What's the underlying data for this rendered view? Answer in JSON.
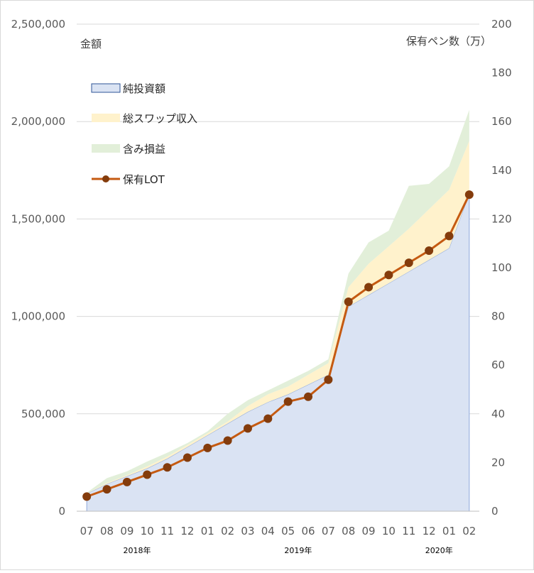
{
  "chart_data": {
    "type": "area",
    "left_axis_unit": "金額",
    "right_axis_unit": "保有ペン数（万）",
    "y_left": {
      "min": 0,
      "max": 2500000,
      "ticks": [
        "0",
        "500,000",
        "1,000,000",
        "1,500,000",
        "2,000,000",
        "2,500,000"
      ]
    },
    "y_right": {
      "min": 0,
      "max": 200,
      "ticks": [
        "0",
        "20",
        "40",
        "60",
        "80",
        "100",
        "120",
        "140",
        "160",
        "180",
        "200"
      ]
    },
    "categories": [
      "07",
      "08",
      "09",
      "10",
      "11",
      "12",
      "01",
      "02",
      "03",
      "04",
      "05",
      "06",
      "07",
      "08",
      "09",
      "10",
      "11",
      "12",
      "01",
      "02"
    ],
    "year_labels": [
      {
        "label": "2018年",
        "at_index": 2.5
      },
      {
        "label": "2019年",
        "at_index": 10.5
      },
      {
        "label": "2020年",
        "at_index": 17.5
      }
    ],
    "legend": [
      "純投資額",
      "総スワップ収入",
      "含み損益",
      "保有LOT"
    ],
    "series": [
      {
        "name": "純投資額",
        "kind": "area",
        "axis": "left",
        "color": "#dae3f3",
        "edge": "#8faadc",
        "values": [
          90000,
          140000,
          180000,
          220000,
          270000,
          330000,
          390000,
          450000,
          510000,
          560000,
          600000,
          650000,
          700000,
          1050000,
          1110000,
          1170000,
          1230000,
          1290000,
          1350000,
          1630000
        ]
      },
      {
        "name": "総スワップ収入",
        "kind": "band",
        "axis": "left",
        "color": "#fff2cc",
        "lower": [
          90000,
          140000,
          180000,
          220000,
          270000,
          330000,
          390000,
          450000,
          510000,
          560000,
          600000,
          650000,
          700000,
          1050000,
          1110000,
          1170000,
          1230000,
          1290000,
          1350000,
          1630000
        ],
        "upper": [
          92000,
          145000,
          185000,
          230000,
          280000,
          340000,
          400000,
          460000,
          540000,
          600000,
          640000,
          700000,
          760000,
          1150000,
          1270000,
          1360000,
          1450000,
          1550000,
          1650000,
          1900000
        ]
      },
      {
        "name": "含み損益",
        "kind": "band",
        "axis": "left",
        "color": "#e2efd9",
        "lower": [
          92000,
          145000,
          185000,
          230000,
          280000,
          340000,
          400000,
          460000,
          540000,
          600000,
          640000,
          700000,
          760000,
          1150000,
          1270000,
          1360000,
          1450000,
          1550000,
          1650000,
          1900000
        ],
        "upper": [
          95000,
          170000,
          205000,
          255000,
          300000,
          350000,
          410000,
          500000,
          570000,
          620000,
          670000,
          720000,
          780000,
          1220000,
          1380000,
          1440000,
          1670000,
          1680000,
          1770000,
          2060000
        ]
      },
      {
        "name": "保有LOT",
        "kind": "line",
        "axis": "right",
        "color": "#c55a11",
        "marker": "#843c0c",
        "values": [
          6,
          9,
          12,
          15,
          18,
          22,
          26,
          29,
          34,
          38,
          45,
          47,
          54,
          86,
          92,
          97,
          102,
          107,
          113,
          130
        ]
      }
    ]
  }
}
